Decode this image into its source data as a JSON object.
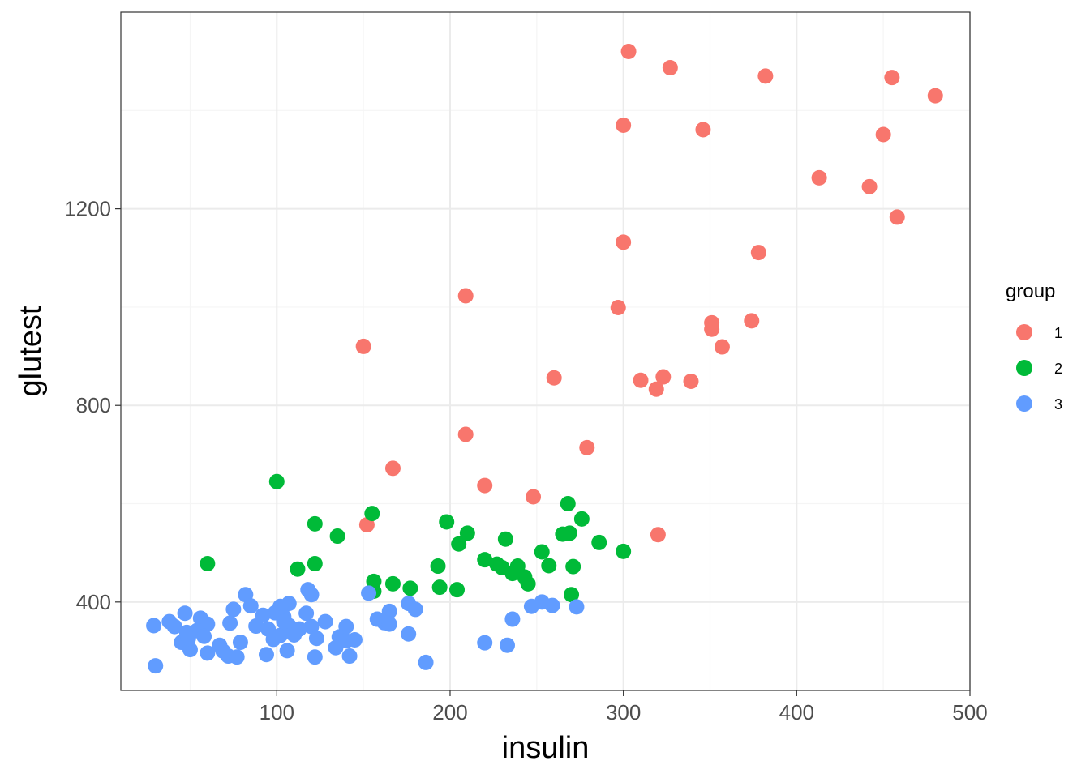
{
  "chart_data": {
    "type": "scatter",
    "title": "",
    "xlabel": "insulin",
    "ylabel": "glutest",
    "xlim": [
      10,
      500
    ],
    "ylim": [
      220,
      1600
    ],
    "x_ticks": [
      100,
      200,
      300,
      400,
      500
    ],
    "y_ticks": [
      400,
      800,
      1200
    ],
    "x_tick_labels": [
      "100",
      "200",
      "300",
      "400",
      "500"
    ],
    "y_tick_labels": [
      "400",
      "800",
      "1200"
    ],
    "grid": true,
    "legend": {
      "title": "group",
      "position": "right"
    },
    "series": [
      {
        "name": "1",
        "color": "#F8766D",
        "points": [
          [
            303,
            1520
          ],
          [
            327,
            1487
          ],
          [
            382,
            1470
          ],
          [
            455,
            1467
          ],
          [
            480,
            1430
          ],
          [
            300,
            1370
          ],
          [
            346,
            1361
          ],
          [
            450,
            1351
          ],
          [
            413,
            1263
          ],
          [
            442,
            1245
          ],
          [
            458,
            1183
          ],
          [
            300,
            1132
          ],
          [
            378,
            1111
          ],
          [
            209,
            1023
          ],
          [
            297,
            999
          ],
          [
            351,
            968
          ],
          [
            374,
            972
          ],
          [
            351,
            955
          ],
          [
            150,
            920
          ],
          [
            357,
            919
          ],
          [
            260,
            856
          ],
          [
            323,
            858
          ],
          [
            310,
            851
          ],
          [
            339,
            849
          ],
          [
            319,
            833
          ],
          [
            209,
            741
          ],
          [
            279,
            714
          ],
          [
            167,
            672
          ],
          [
            220,
            637
          ],
          [
            248,
            614
          ],
          [
            152,
            557
          ],
          [
            320,
            537
          ]
        ]
      },
      {
        "name": "2",
        "color": "#00BA38",
        "points": [
          [
            100,
            645
          ],
          [
            268,
            600
          ],
          [
            155,
            580
          ],
          [
            276,
            569
          ],
          [
            198,
            563
          ],
          [
            122,
            559
          ],
          [
            210,
            540
          ],
          [
            265,
            538
          ],
          [
            269,
            540
          ],
          [
            135,
            534
          ],
          [
            232,
            528
          ],
          [
            286,
            521
          ],
          [
            205,
            518
          ],
          [
            253,
            502
          ],
          [
            300,
            503
          ],
          [
            60,
            478
          ],
          [
            122,
            478
          ],
          [
            220,
            486
          ],
          [
            227,
            477
          ],
          [
            230,
            470
          ],
          [
            239,
            473
          ],
          [
            257,
            474
          ],
          [
            271,
            472
          ],
          [
            193,
            473
          ],
          [
            112,
            467
          ],
          [
            236,
            458
          ],
          [
            243,
            451
          ],
          [
            156,
            442
          ],
          [
            167,
            437
          ],
          [
            245,
            437
          ],
          [
            177,
            428
          ],
          [
            194,
            430
          ],
          [
            204,
            425
          ],
          [
            156,
            422
          ],
          [
            270,
            415
          ]
        ]
      },
      {
        "name": "3",
        "color": "#619CFF",
        "points": [
          [
            82,
            415
          ],
          [
            118,
            425
          ],
          [
            120,
            415
          ],
          [
            153,
            418
          ],
          [
            107,
            397
          ],
          [
            85,
            392
          ],
          [
            102,
            391
          ],
          [
            273,
            390
          ],
          [
            247,
            391
          ],
          [
            253,
            400
          ],
          [
            259,
            393
          ],
          [
            176,
            397
          ],
          [
            180,
            385
          ],
          [
            75,
            385
          ],
          [
            99,
            378
          ],
          [
            47,
            377
          ],
          [
            92,
            373
          ],
          [
            117,
            377
          ],
          [
            165,
            381
          ],
          [
            56,
            367
          ],
          [
            104,
            370
          ],
          [
            128,
            360
          ],
          [
            38,
            360
          ],
          [
            29,
            352
          ],
          [
            41,
            350
          ],
          [
            60,
            355
          ],
          [
            73,
            357
          ],
          [
            88,
            351
          ],
          [
            95,
            345
          ],
          [
            107,
            352
          ],
          [
            120,
            350
          ],
          [
            140,
            350
          ],
          [
            158,
            365
          ],
          [
            162,
            358
          ],
          [
            165,
            355
          ],
          [
            236,
            365
          ],
          [
            48,
            338
          ],
          [
            54,
            342
          ],
          [
            58,
            330
          ],
          [
            98,
            324
          ],
          [
            102,
            332
          ],
          [
            110,
            333
          ],
          [
            123,
            326
          ],
          [
            136,
            329
          ],
          [
            140,
            321
          ],
          [
            145,
            323
          ],
          [
            176,
            335
          ],
          [
            45,
            318
          ],
          [
            67,
            312
          ],
          [
            79,
            318
          ],
          [
            134,
            307
          ],
          [
            220,
            317
          ],
          [
            233,
            312
          ],
          [
            50,
            303
          ],
          [
            69,
            300
          ],
          [
            60,
            296
          ],
          [
            72,
            290
          ],
          [
            77,
            288
          ],
          [
            94,
            293
          ],
          [
            106,
            301
          ],
          [
            122,
            288
          ],
          [
            142,
            290
          ],
          [
            186,
            277
          ],
          [
            30,
            270
          ],
          [
            49,
            326
          ],
          [
            104,
            360
          ],
          [
            113,
            345
          ]
        ]
      }
    ]
  }
}
